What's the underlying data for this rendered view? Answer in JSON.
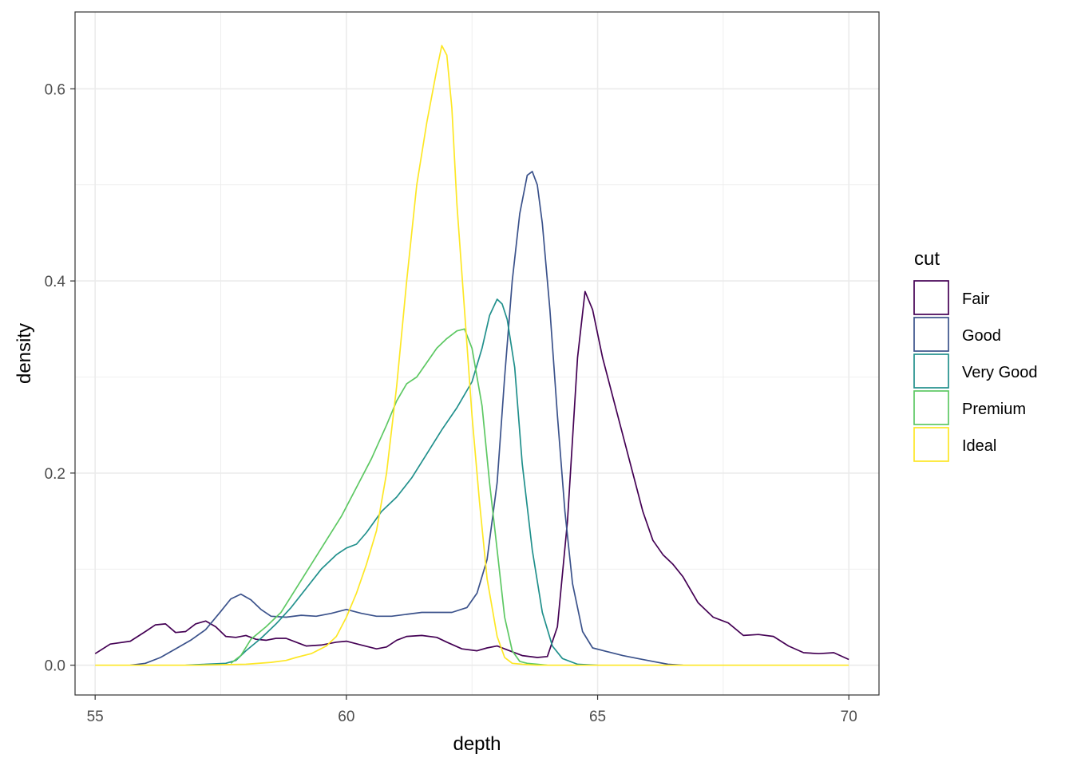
{
  "chart_data": {
    "type": "line",
    "title": "",
    "xlabel": "depth",
    "ylabel": "density",
    "xlim": [
      54.6,
      70.6
    ],
    "ylim": [
      -0.031,
      0.68
    ],
    "x_ticks": [
      55,
      60,
      65,
      70
    ],
    "x_tick_labels": [
      "55",
      "60",
      "65",
      "70"
    ],
    "y_ticks": [
      0.0,
      0.2,
      0.4,
      0.6
    ],
    "y_tick_labels": [
      "0.0",
      "0.2",
      "0.4",
      "0.6"
    ],
    "grid": true,
    "legend": {
      "title": "cut",
      "position": "right"
    },
    "series": [
      {
        "name": "Fair",
        "color": "#440154",
        "x": [
          55,
          55.3,
          55.7,
          56.0,
          56.2,
          56.4,
          56.6,
          56.8,
          57.0,
          57.2,
          57.4,
          57.6,
          57.8,
          58.0,
          58.2,
          58.4,
          58.6,
          58.8,
          59.0,
          59.2,
          59.5,
          59.8,
          60.0,
          60.3,
          60.6,
          60.8,
          61.0,
          61.2,
          61.5,
          61.8,
          62.0,
          62.3,
          62.6,
          62.8,
          63.0,
          63.2,
          63.5,
          63.8,
          64.0,
          64.2,
          64.4,
          64.6,
          64.75,
          64.9,
          65.1,
          65.3,
          65.5,
          65.7,
          65.9,
          66.1,
          66.3,
          66.5,
          66.7,
          67.0,
          67.3,
          67.6,
          67.9,
          68.2,
          68.5,
          68.8,
          69.1,
          69.4,
          69.7,
          70.0
        ],
        "y": [
          0.012,
          0.022,
          0.025,
          0.035,
          0.042,
          0.043,
          0.034,
          0.035,
          0.043,
          0.046,
          0.04,
          0.03,
          0.029,
          0.031,
          0.027,
          0.026,
          0.028,
          0.028,
          0.024,
          0.02,
          0.021,
          0.024,
          0.025,
          0.021,
          0.017,
          0.019,
          0.026,
          0.03,
          0.031,
          0.029,
          0.024,
          0.017,
          0.015,
          0.018,
          0.02,
          0.016,
          0.01,
          0.008,
          0.009,
          0.04,
          0.15,
          0.32,
          0.389,
          0.37,
          0.32,
          0.28,
          0.24,
          0.2,
          0.16,
          0.13,
          0.115,
          0.105,
          0.092,
          0.065,
          0.05,
          0.044,
          0.031,
          0.032,
          0.03,
          0.02,
          0.013,
          0.012,
          0.013,
          0.006
        ]
      },
      {
        "name": "Good",
        "color": "#3b528b",
        "x": [
          55.7,
          56.0,
          56.3,
          56.6,
          56.9,
          57.2,
          57.5,
          57.7,
          57.9,
          58.1,
          58.3,
          58.5,
          58.8,
          59.1,
          59.4,
          59.7,
          60.0,
          60.3,
          60.6,
          60.9,
          61.2,
          61.5,
          61.8,
          62.1,
          62.4,
          62.6,
          62.8,
          63.0,
          63.15,
          63.3,
          63.45,
          63.6,
          63.7,
          63.8,
          63.9,
          64.05,
          64.2,
          64.35,
          64.5,
          64.7,
          64.9,
          65.2,
          65.5,
          65.8,
          66.1,
          66.4,
          66.7
        ],
        "y": [
          0.0,
          0.002,
          0.008,
          0.017,
          0.026,
          0.037,
          0.056,
          0.069,
          0.074,
          0.068,
          0.058,
          0.051,
          0.05,
          0.052,
          0.051,
          0.054,
          0.058,
          0.054,
          0.051,
          0.051,
          0.053,
          0.055,
          0.055,
          0.055,
          0.06,
          0.075,
          0.11,
          0.19,
          0.3,
          0.4,
          0.47,
          0.51,
          0.514,
          0.5,
          0.46,
          0.37,
          0.26,
          0.16,
          0.085,
          0.035,
          0.018,
          0.014,
          0.01,
          0.007,
          0.004,
          0.001,
          0.0
        ]
      },
      {
        "name": "Very Good",
        "color": "#21908c",
        "x": [
          56.8,
          57.2,
          57.6,
          57.8,
          58.0,
          58.3,
          58.6,
          58.9,
          59.2,
          59.5,
          59.8,
          60.0,
          60.2,
          60.4,
          60.7,
          61.0,
          61.3,
          61.6,
          61.9,
          62.2,
          62.5,
          62.7,
          62.85,
          63.0,
          63.1,
          63.2,
          63.35,
          63.5,
          63.7,
          63.9,
          64.1,
          64.3,
          64.6,
          65.0
        ],
        "y": [
          0.0,
          0.001,
          0.002,
          0.005,
          0.015,
          0.028,
          0.043,
          0.06,
          0.08,
          0.1,
          0.115,
          0.122,
          0.126,
          0.138,
          0.16,
          0.175,
          0.195,
          0.22,
          0.245,
          0.268,
          0.295,
          0.33,
          0.364,
          0.381,
          0.376,
          0.36,
          0.31,
          0.21,
          0.12,
          0.055,
          0.02,
          0.007,
          0.001,
          0.0
        ]
      },
      {
        "name": "Premium",
        "color": "#5dc863",
        "x": [
          57.7,
          57.9,
          58.1,
          58.4,
          58.7,
          59.0,
          59.3,
          59.6,
          59.9,
          60.2,
          60.5,
          60.8,
          61.0,
          61.2,
          61.4,
          61.6,
          61.8,
          62.0,
          62.2,
          62.35,
          62.5,
          62.7,
          62.85,
          63.0,
          63.15,
          63.3,
          63.45,
          63.6,
          63.8,
          64.0
        ],
        "y": [
          0.002,
          0.01,
          0.027,
          0.04,
          0.055,
          0.08,
          0.105,
          0.13,
          0.155,
          0.185,
          0.215,
          0.25,
          0.275,
          0.293,
          0.3,
          0.315,
          0.33,
          0.34,
          0.348,
          0.35,
          0.33,
          0.27,
          0.19,
          0.12,
          0.05,
          0.015,
          0.004,
          0.002,
          0.001,
          0.0
        ]
      },
      {
        "name": "Ideal",
        "color": "#fde725",
        "x": [
          55,
          56,
          57,
          58.0,
          58.5,
          58.8,
          59.0,
          59.3,
          59.6,
          59.8,
          60.0,
          60.2,
          60.4,
          60.6,
          60.8,
          61.0,
          61.2,
          61.4,
          61.6,
          61.8,
          61.9,
          62.0,
          62.1,
          62.2,
          62.35,
          62.5,
          62.65,
          62.8,
          63.0,
          63.15,
          63.3,
          63.5,
          63.8,
          64.2,
          65,
          66,
          67,
          68,
          69,
          70
        ],
        "y": [
          0.0,
          0.0,
          0.0,
          0.001,
          0.003,
          0.005,
          0.008,
          0.012,
          0.02,
          0.03,
          0.05,
          0.075,
          0.105,
          0.14,
          0.2,
          0.29,
          0.4,
          0.5,
          0.565,
          0.62,
          0.645,
          0.635,
          0.58,
          0.48,
          0.37,
          0.26,
          0.17,
          0.09,
          0.03,
          0.008,
          0.002,
          0.001,
          0.0,
          0.0,
          0.0,
          0.0,
          0.0,
          0.0,
          0.0,
          0.0
        ]
      }
    ]
  }
}
